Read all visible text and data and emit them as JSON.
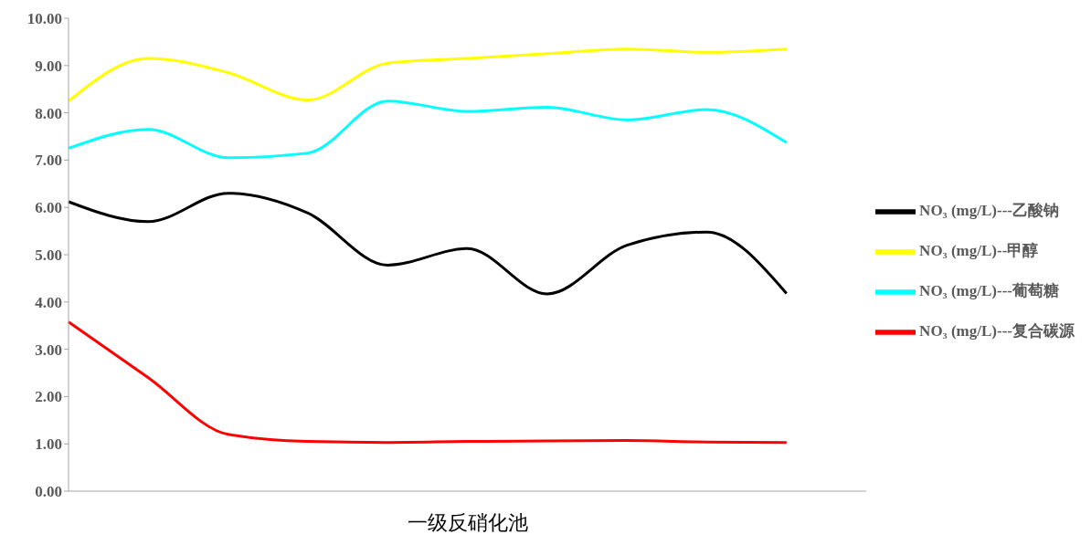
{
  "chart_data": {
    "type": "line",
    "xlabel": "一级反硝化池",
    "categories": [
      null,
      null,
      null,
      null,
      null,
      null,
      null,
      null,
      null,
      null
    ],
    "series": [
      {
        "name": "NO₃ (mg/L)---乙酸钠",
        "color": "#000000",
        "values": [
          6.12,
          5.7,
          6.3,
          5.88,
          4.78,
          5.13,
          4.17,
          5.2,
          5.48,
          4.18
        ]
      },
      {
        "name": "NO₃ (mg/L)--甲醇",
        "color": "#ffff00",
        "values": [
          8.25,
          9.15,
          8.85,
          8.27,
          9.05,
          9.15,
          9.25,
          9.35,
          9.28,
          9.35
        ]
      },
      {
        "name": "NO₃ (mg/L)---葡萄糖",
        "color": "#00ffff",
        "values": [
          7.25,
          7.65,
          7.05,
          7.15,
          8.25,
          8.03,
          8.12,
          7.85,
          8.07,
          7.37
        ]
      },
      {
        "name": "NO₃ (mg/L)---复合碳源",
        "color": "#ff0000",
        "values": [
          3.58,
          2.4,
          1.2,
          1.05,
          1.03,
          1.05,
          1.06,
          1.07,
          1.04,
          1.03
        ]
      }
    ],
    "ylim": [
      0,
      10
    ],
    "yticks": [
      {
        "value": 0,
        "label": "0.00"
      },
      {
        "value": 1,
        "label": "1.00"
      },
      {
        "value": 2,
        "label": "2.00"
      },
      {
        "value": 3,
        "label": "3.00"
      },
      {
        "value": 4,
        "label": "4.00"
      },
      {
        "value": 5,
        "label": "5.00"
      },
      {
        "value": 6,
        "label": "6.00"
      },
      {
        "value": 7,
        "label": "7.00"
      },
      {
        "value": 8,
        "label": "8.00"
      },
      {
        "value": 9,
        "label": "9.00"
      },
      {
        "value": 10,
        "label": "10.00"
      }
    ],
    "grid": false,
    "legend": "right",
    "marker": "none",
    "line_style": "solid"
  }
}
